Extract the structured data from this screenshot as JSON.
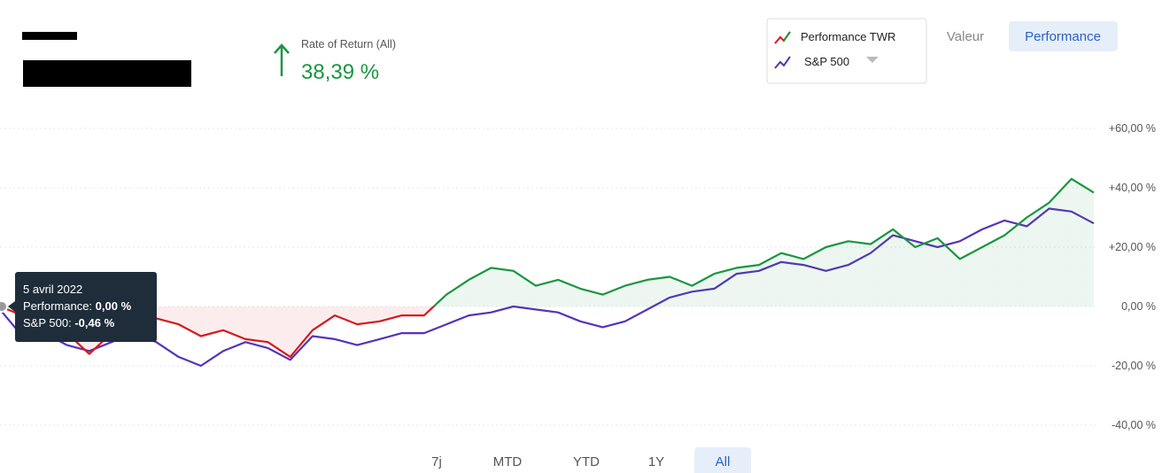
{
  "header": {
    "rate_label": "Rate of Return (All)",
    "rate_value": "38,39 %"
  },
  "toggle": [
    "Valeur",
    "Performance"
  ],
  "ranges": [
    "7j",
    "MTD",
    "YTD",
    "1Y",
    "All"
  ],
  "tooltip": {
    "date": "5 avril 2022",
    "rows": [
      {
        "label": "Performance:",
        "value": "0,00 %"
      },
      {
        "label": "S&P 500:",
        "value": "-0,46 %"
      }
    ]
  },
  "chart_data": {
    "type": "line",
    "categories": [
      null,
      null,
      null,
      null,
      null,
      null,
      null,
      null,
      null,
      null,
      null,
      null,
      null,
      null,
      null,
      null,
      null,
      null,
      null,
      null,
      null,
      null,
      null,
      null,
      null,
      null,
      null,
      null,
      null,
      null,
      null,
      null,
      null,
      null,
      null,
      null,
      null,
      null,
      null,
      null,
      null,
      null,
      null,
      null,
      null,
      null,
      null,
      null,
      null,
      null
    ],
    "series": [
      {
        "name": "Performance TWR",
        "color": "#1a9641",
        "negative_color": "#d7191c",
        "values": [
          0,
          -3,
          -5,
          -9,
          -16,
          -9,
          -5,
          -4,
          -6,
          -10,
          -8,
          -11,
          -12,
          -17,
          -8,
          -3,
          -6,
          -5,
          -3,
          -3,
          4,
          9,
          13,
          12,
          7,
          9,
          6,
          4,
          7,
          9,
          10,
          7,
          11,
          13,
          14,
          18,
          16,
          20,
          22,
          21,
          26,
          20,
          23,
          16,
          20,
          24,
          30,
          35,
          43,
          38.4
        ]
      },
      {
        "name": "S&P 500",
        "color": "#5533bb",
        "values": [
          -1,
          -10,
          -9,
          -13,
          -15,
          -12,
          -9,
          -12,
          -17,
          -20,
          -15,
          -12,
          -14,
          -18,
          -10,
          -11,
          -13,
          -11,
          -9,
          -9,
          -6,
          -3,
          -2,
          0,
          -1,
          -2,
          -5,
          -7,
          -5,
          -1,
          3,
          5,
          6,
          11,
          12,
          15,
          14,
          12,
          14,
          18,
          24,
          22,
          20,
          22,
          26,
          29,
          27,
          33,
          32,
          28
        ]
      }
    ],
    "ylim": [
      -40,
      60
    ],
    "yticks": [
      {
        "value": -40,
        "label": "-40,00 %"
      },
      {
        "value": -20,
        "label": "-20,00 %"
      },
      {
        "value": 0,
        "label": "0,00 %"
      },
      {
        "value": 20,
        "label": "+20,00 %"
      },
      {
        "value": 40,
        "label": "+40,00 %"
      },
      {
        "value": 60,
        "label": "+60,00 %"
      }
    ],
    "grid": true
  }
}
